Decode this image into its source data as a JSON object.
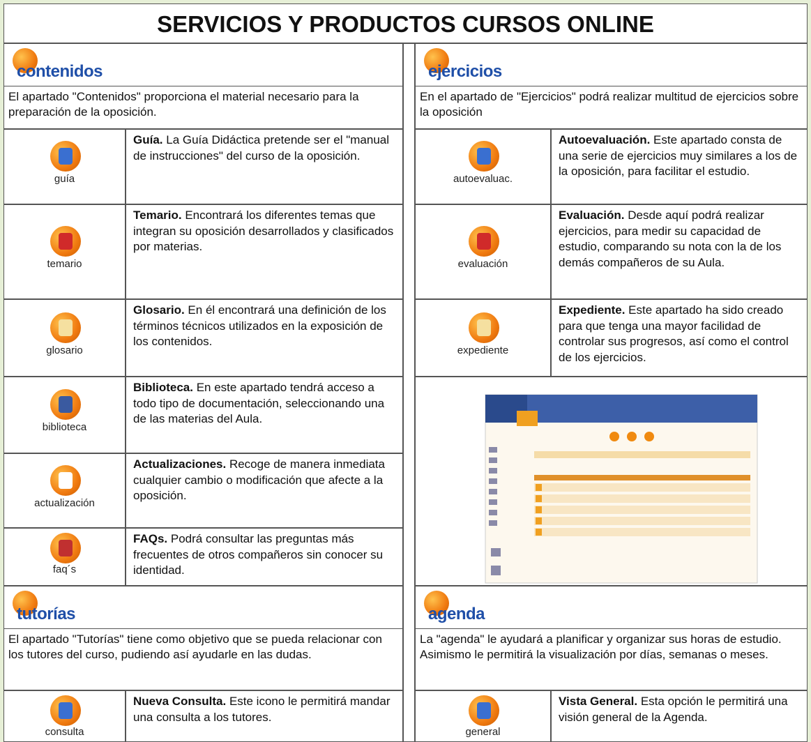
{
  "title": "SERVICIOS Y PRODUCTOS CURSOS ONLINE",
  "sections": [
    {
      "heading": "contenidos",
      "description": "El apartado \"Contenidos\" proporciona el material necesario para la preparación de la oposición.",
      "items": [
        {
          "icon_label": "guía",
          "title": "Guía.",
          "text": "La Guía Didáctica pretende ser el \"manual de instrucciones\" del curso de la oposición."
        },
        {
          "icon_label": "temario",
          "title": "Temario.",
          "text": "Encontrará los diferentes temas que integran su oposición desarrollados y clasificados por materias."
        },
        {
          "icon_label": "glosario",
          "title": "Glosario.",
          "text": "En él encontrará una definición de los términos técnicos utilizados en la exposición de los contenidos."
        },
        {
          "icon_label": "biblioteca",
          "title": "Biblioteca.",
          "text": "En este apartado tendrá acceso a todo tipo de documentación, seleccionando una de las materias del Aula."
        },
        {
          "icon_label": "actualización",
          "title": "Actualizaciones.",
          "text": "Recoge de manera inmediata cualquier cambio o modificación que afecte a la oposición."
        },
        {
          "icon_label": "faq´s",
          "title": "FAQs.",
          "text": "Podrá consultar las preguntas más frecuentes de otros compañeros sin conocer su identidad."
        }
      ]
    },
    {
      "heading": "ejercicios",
      "description": "En el apartado de \"Ejercicios\" podrá realizar multitud de ejercicios sobre la oposición",
      "items": [
        {
          "icon_label": "autoevaluac.",
          "title": "Autoevaluación.",
          "text": "Este apartado consta de una serie de ejercicios muy similares a los de la oposición, para facilitar el estudio."
        },
        {
          "icon_label": "evaluación",
          "title": "Evaluación.",
          "text": "Desde aquí podrá realizar ejercicios, para medir su capacidad de estudio, comparando su nota con la de los demás compañeros de su Aula."
        },
        {
          "icon_label": "expediente",
          "title": "Expediente.",
          "text": "Este apartado ha sido creado para que tenga una mayor facilidad de controlar sus progresos, así como el control de los ejercicios."
        }
      ]
    },
    {
      "heading": "tutorías",
      "description": "El apartado \"Tutorías\" tiene como objetivo que se pueda relacionar con los tutores del curso, pudiendo así ayudarle en las dudas.",
      "items": [
        {
          "icon_label": "consulta",
          "title": "Nueva Consulta.",
          "text": "Este icono le permitirá mandar una consulta a los tutores."
        }
      ]
    },
    {
      "heading": "agenda",
      "description": "La \"agenda\" le ayudará a planificar y organizar sus horas de estudio. Asimismo le permitirá la visualización por días, semanas o meses.",
      "items": [
        {
          "icon_label": "general",
          "title": "Vista General.",
          "text": "Esta opción le permitirá una visión general de la Agenda."
        }
      ]
    }
  ]
}
